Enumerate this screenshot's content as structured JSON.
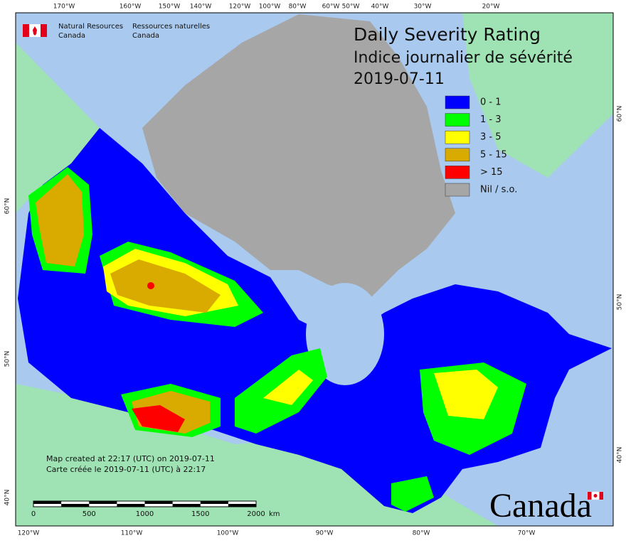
{
  "header": {
    "org_en": [
      "Natural Resources",
      "Canada"
    ],
    "org_fr": [
      "Ressources naturelles",
      "Canada"
    ]
  },
  "title": [
    "Daily Severity Rating",
    "Indice journalier de sévérité",
    "2019-07-11"
  ],
  "legend": [
    {
      "label": "0 - 1",
      "color": "#0000ff"
    },
    {
      "label": "1 - 3",
      "color": "#00ff00"
    },
    {
      "label": "3 - 5",
      "color": "#ffff00"
    },
    {
      "label": "5 - 15",
      "color": "#d9aa00"
    },
    {
      "label": "> 15",
      "color": "#ff0000"
    },
    {
      "label": "Nil / s.o.",
      "color": "#a6a6a6"
    }
  ],
  "graticule": {
    "top": [
      "170°W",
      "160°W",
      "150°W",
      "140°W",
      "120°W",
      "100°W",
      "80°W",
      "60°W",
      "50°W",
      "40°W",
      "30°W",
      "20°W"
    ],
    "bottom": [
      "120°W",
      "110°W",
      "100°W",
      "90°W",
      "80°W",
      "70°W"
    ],
    "left": [
      "60°N",
      "50°N",
      "40°N"
    ],
    "right": [
      "60°N",
      "50°N",
      "40°N"
    ]
  },
  "credits": [
    "Map created at 22:17 (UTC) on 2019-07-11",
    "Carte créée le 2019-07-11 (UTC) à 22:17"
  ],
  "scale_bar": {
    "labels": [
      "0",
      "500",
      "1000",
      "1500",
      "2000"
    ],
    "unit": "km"
  },
  "wordmark": "Canada"
}
